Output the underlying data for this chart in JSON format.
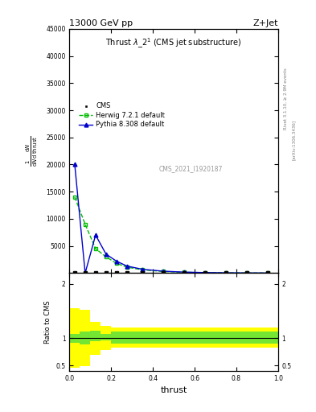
{
  "title": "13000 GeV pp",
  "title_right": "Z+Jet",
  "xlabel": "thrust",
  "ylabel_ratio": "Ratio to CMS",
  "watermark": "CMS_2021_I1920187",
  "right_label1": "Rivet 3.1.10, ≥ 2.9M events",
  "right_label2": "[arXiv:1306.3436]",
  "cms_color": "#000000",
  "herwig_color": "#00bb00",
  "pythia_color": "#0000cc",
  "yellow_color": "#ffff00",
  "green_color": "#44dd44",
  "bg_color": "#ffffff",
  "fig_width": 3.93,
  "fig_height": 5.12,
  "main_ylim": [
    0,
    45000
  ],
  "main_yticks": [
    5000,
    10000,
    15000,
    20000,
    25000,
    30000,
    35000,
    40000,
    45000
  ],
  "ratio_ylim": [
    0.4,
    2.2
  ],
  "ratio_yticks": [
    0.5,
    1.0,
    2.0
  ],
  "ratio_ytick_labels": [
    "0.5",
    "1",
    "2"
  ]
}
